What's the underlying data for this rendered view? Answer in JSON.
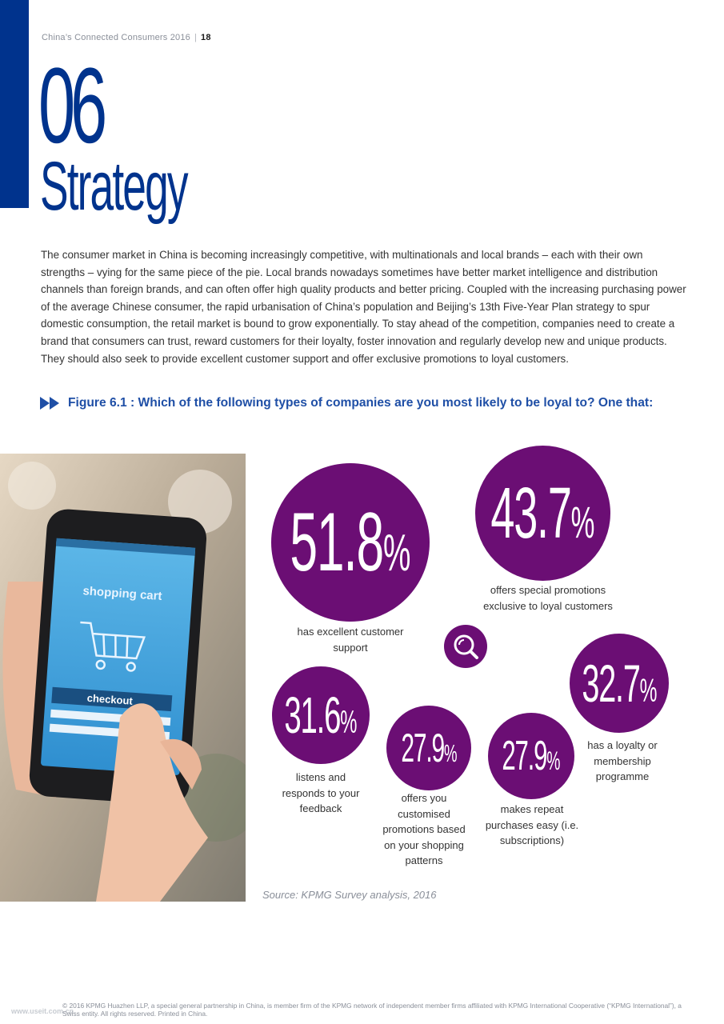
{
  "header": {
    "publication": "China’s Connected Consumers 2016",
    "separator": "|",
    "page_number": "18"
  },
  "chapter": {
    "number": "06",
    "title": "Strategy"
  },
  "intro_paragraph": "The consumer market in China is becoming increasingly competitive, with multinationals and local brands – each with their own strengths – vying for the same piece of the pie. Local brands nowadays sometimes have better market intelligence and distribution channels than foreign brands, and can often offer high quality products and better pricing. Coupled with the increasing purchasing power of the average Chinese consumer, the rapid urbanisation of China’s population and Beijing’s 13th Five-Year Plan strategy to spur domestic consumption, the retail market is bound to grow exponentially. To stay ahead of the competition, companies need to create a brand that consumers can trust, reward customers for their loyalty, foster innovation and regularly develop new and unique products. They should also seek to provide excellent customer support and offer exclusive promotions to loyal customers.",
  "figure": {
    "title": "Figure 6.1 : Which of the following types of companies are you most likely to be loyal to? One that:",
    "arrow_icon": "double-arrow-right-icon",
    "search_icon": "magnifier-icon",
    "source": "Source: KPMG Survey analysis, 2016"
  },
  "photo": {
    "screen_heading": "shopping cart",
    "checkout_label": "checkout",
    "icons": [
      "smartphone",
      "hand",
      "shopping-cart-icon"
    ]
  },
  "chart_data": {
    "type": "bubble",
    "unit": "%",
    "items": [
      {
        "value": 51.8,
        "display": "51.8",
        "label": "has excellent customer support"
      },
      {
        "value": 43.7,
        "display": "43.7",
        "label": "offers special promotions exclusive to loyal customers"
      },
      {
        "value": 32.7,
        "display": "32.7",
        "label": "has a loyalty or membership programme"
      },
      {
        "value": 31.6,
        "display": "31.6",
        "label": "listens and responds to your feedback"
      },
      {
        "value": 27.9,
        "display": "27.9",
        "label": "offers you customised promotions based on your shopping patterns"
      },
      {
        "value": 27.9,
        "display": "27.9",
        "label": "makes repeat purchases easy (i.e. subscriptions)"
      }
    ]
  },
  "footer": {
    "legal": "© 2016 KPMG Huazhen LLP, a special general partnership in China, is member firm of the KPMG network of independent member firms affiliated with KPMG International Cooperative (“KPMG International”), a Swiss entity. All rights reserved. Printed in China.",
    "watermark": "www.useit.com.cn"
  },
  "colors": {
    "brand_blue": "#00338d",
    "figure_title_blue": "#1f4fa6",
    "bubble_purple": "#6b0e74",
    "body_text": "#333333"
  }
}
